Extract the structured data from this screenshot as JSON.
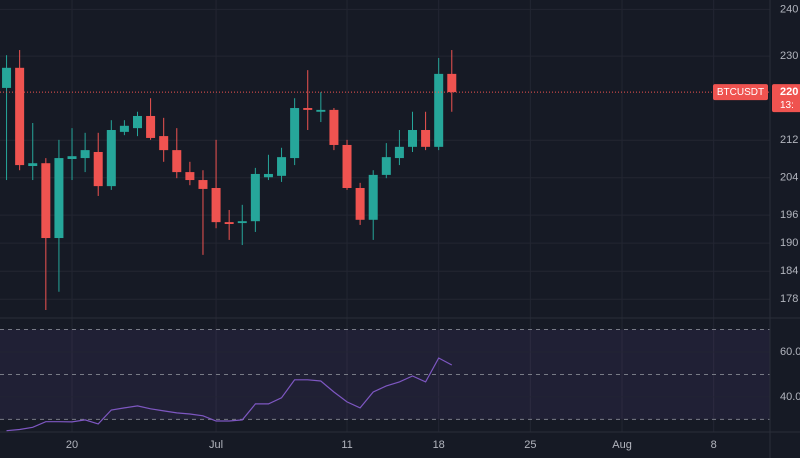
{
  "chart_data": [
    {
      "type": "candlestick",
      "symbol": "BTCUSDT",
      "price_label": "220",
      "countdown": "13:",
      "up_color": "#26a69a",
      "down_color": "#ef5350",
      "open": [
        22320,
        22750,
        20650,
        20710,
        19110,
        20800,
        20820,
        20950,
        20220,
        21380,
        21460,
        21720,
        21290,
        20990,
        20520,
        20350,
        20180,
        19450,
        19430,
        19470,
        20410,
        20440,
        20820,
        21890,
        21810,
        21850,
        21100,
        20180,
        19500,
        20460,
        20820,
        21060,
        21420,
        21060,
        22620
      ],
      "high": [
        23020,
        23130,
        21570,
        20820,
        21210,
        21460,
        21360,
        21360,
        21630,
        21630,
        21810,
        22100,
        21680,
        21460,
        20740,
        20560,
        21210,
        19710,
        19820,
        20610,
        20890,
        21040,
        22100,
        22700,
        22230,
        21890,
        21210,
        20290,
        20560,
        21140,
        21420,
        21810,
        21810,
        22960,
        23130
      ],
      "low": [
        20350,
        20560,
        20350,
        17570,
        17960,
        20350,
        20520,
        20010,
        20140,
        21310,
        21290,
        21210,
        20740,
        20390,
        20240,
        18750,
        19320,
        19070,
        18960,
        19240,
        20350,
        20310,
        20670,
        21420,
        21590,
        20990,
        20140,
        19390,
        19070,
        20390,
        20670,
        20950,
        20990,
        20990,
        21810
      ],
      "close": [
        22750,
        20670,
        20710,
        19110,
        20820,
        20860,
        20990,
        20220,
        21420,
        21510,
        21720,
        21250,
        20990,
        20520,
        20350,
        20160,
        19450,
        19410,
        19470,
        20480,
        20480,
        20840,
        21890,
        21850,
        21850,
        21100,
        20180,
        19500,
        20460,
        20840,
        21060,
        21420,
        21060,
        22620,
        22230
      ],
      "xlim": [
        -0.5,
        58.3
      ],
      "xticks": [
        {
          "value": 5,
          "label": "20"
        },
        {
          "value": 16,
          "label": "Jul"
        },
        {
          "value": 26,
          "label": "11"
        },
        {
          "value": 33,
          "label": "18"
        },
        {
          "value": 40,
          "label": "25"
        },
        {
          "value": 47,
          "label": "Aug"
        },
        {
          "value": 54,
          "label": "8"
        }
      ],
      "ylim": [
        17400,
        24200
      ],
      "yticks": [
        {
          "value": 24000,
          "label": "240"
        },
        {
          "value": 23000,
          "label": "230"
        },
        {
          "value": 21200,
          "label": "212"
        },
        {
          "value": 20400,
          "label": "204"
        },
        {
          "value": 19600,
          "label": "196"
        },
        {
          "value": 19000,
          "label": "190"
        },
        {
          "value": 18400,
          "label": "184"
        },
        {
          "value": 17800,
          "label": "178"
        }
      ],
      "grid": true
    },
    {
      "type": "line",
      "series": [
        {
          "color": "#7e57c2",
          "values": [
            25.0,
            25.5,
            26.5,
            29.0,
            29.0,
            28.9,
            29.8,
            28.0,
            34.2,
            35.1,
            36.0,
            34.7,
            33.8,
            32.9,
            32.4,
            31.6,
            29.3,
            29.3,
            29.8,
            36.9,
            36.9,
            39.6,
            47.6,
            47.6,
            47.1,
            42.2,
            37.8,
            35.1,
            42.2,
            44.9,
            46.7,
            49.3,
            46.7,
            57.3,
            54.2
          ]
        }
      ],
      "ylim": [
        24.4,
        75.1
      ],
      "yticks": [
        {
          "value": 60,
          "label": "60.0"
        },
        {
          "value": 40,
          "label": "40.0"
        }
      ],
      "bands": [
        70,
        50,
        30
      ],
      "band_color": "#7e57c2",
      "grid": true
    }
  ]
}
